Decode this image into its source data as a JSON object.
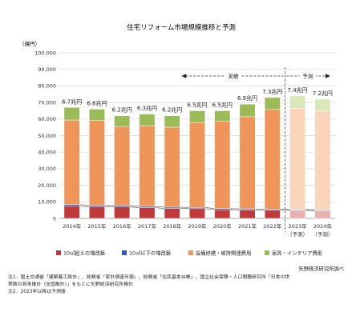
{
  "chart_data": {
    "type": "bar",
    "stacked": true,
    "title": "住宅リフォーム市場規模推移と予測",
    "unit_label": "（億円）",
    "ylim": [
      0,
      100000
    ],
    "yticks": [
      "0",
      "10,000",
      "20,000",
      "30,000",
      "40,000",
      "50,000",
      "60,000",
      "70,000",
      "80,000",
      "90,000",
      "100,000"
    ],
    "categories": [
      "2014年",
      "2015年",
      "2016年",
      "2017年",
      "2018年",
      "2019年",
      "2020年",
      "2021年",
      "2022年",
      "2023年",
      "2024年"
    ],
    "category_notes": [
      "",
      "",
      "",
      "",
      "",
      "",
      "",
      "",
      "",
      "（予測）",
      "（予測）"
    ],
    "totals_labels": [
      "6.7兆円",
      "6.6兆円",
      "6.2兆円",
      "6.3兆円",
      "6.2兆円",
      "6.5兆円",
      "6.5兆円",
      "6.9兆円",
      "7.3兆円",
      "7.4兆円",
      "7.2兆円"
    ],
    "forecast_from_index": 9,
    "series": [
      {
        "name": "10㎡超えの増改築",
        "color": "#c0393b",
        "forecast_color": "#e8aeb0",
        "values": [
          7400,
          6900,
          6900,
          6500,
          6000,
          5900,
          5200,
          5100,
          4900,
          4800,
          4700
        ]
      },
      {
        "name": "10㎡以下の増改築",
        "color": "#2f5bb7",
        "forecast_color": "#a9bce6",
        "values": [
          1000,
          900,
          900,
          800,
          800,
          700,
          700,
          700,
          600,
          600,
          600
        ]
      },
      {
        "name": "設備修繕・維持関連費用",
        "color": "#f0955a",
        "forecast_color": "#fad5bb",
        "values": [
          51000,
          51300,
          47700,
          48700,
          48300,
          51300,
          52700,
          55600,
          60300,
          61100,
          59500
        ]
      },
      {
        "name": "家具・インテリア費用",
        "color": "#9bbb59",
        "forecast_color": "#d9e8b9",
        "values": [
          7600,
          6900,
          6500,
          7000,
          6900,
          7100,
          6400,
          7600,
          7200,
          7500,
          7200
        ]
      }
    ],
    "annotations": {
      "actual": "実績",
      "forecast": "予測"
    }
  },
  "source": "矢野経済研究所調べ",
  "notes": [
    "注1．国土交通省「建築着工統計」、総務省「家計調査年報」、総務省「住民基本台帳」、国立社会保障・人口問題研究所「日本の世",
    "帯数の将来推計（全国推計）」をもとに矢野経済研究所推計",
    "注2．2023年以降は予測値"
  ]
}
